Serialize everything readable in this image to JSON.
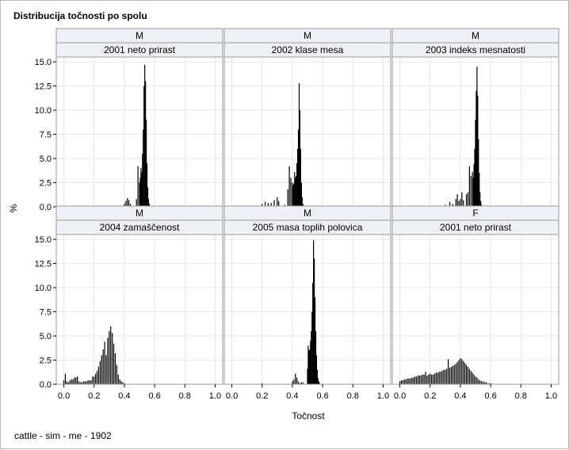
{
  "title": "Distribucija točnosti po spolu",
  "footnote": "cattle - sim - me - 1902",
  "colors": {
    "bars": "#000000",
    "grid": "#e6e6e6",
    "strip": "#eef0f6",
    "frame": "#9a9a9a"
  },
  "chart_data": {
    "type": "bar",
    "title": "Distribucija točnosti po spolu",
    "xlabel": "Točnost",
    "ylabel": "%",
    "xlim": [
      -0.05,
      1.05
    ],
    "ylim": [
      0,
      15.5
    ],
    "xticks": [
      0.0,
      0.2,
      0.4,
      0.6,
      0.8,
      1.0
    ],
    "yticks": [
      0.0,
      2.5,
      5.0,
      7.5,
      10.0,
      12.5,
      15.0
    ],
    "xtick_labels": [
      "0.0",
      "0.2",
      "0.4",
      "0.6",
      "0.8",
      "1.0"
    ],
    "ytick_labels": [
      "0.0",
      "2.5",
      "5.0",
      "7.5",
      "10.0",
      "12.5",
      "15.0"
    ],
    "grid": true,
    "panels": [
      {
        "sex": "M",
        "trait": "2001 neto prirast",
        "x": [
          0.1,
          0.2,
          0.4,
          0.41,
          0.42,
          0.43,
          0.44,
          0.48,
          0.49,
          0.5,
          0.505,
          0.51,
          0.515,
          0.52,
          0.525,
          0.53,
          0.535,
          0.54,
          0.545,
          0.55,
          0.555,
          0.56,
          0.565,
          0.57
        ],
        "y": [
          0.1,
          0.1,
          0.3,
          0.6,
          0.9,
          0.7,
          0.3,
          0.8,
          4.2,
          2.5,
          3.0,
          4.0,
          3.6,
          5.5,
          8.0,
          12.5,
          14.7,
          13.0,
          9.0,
          4.5,
          2.0,
          0.8,
          0.3,
          0.1
        ]
      },
      {
        "sex": "M",
        "trait": "2002 klase mesa",
        "x": [
          0.0,
          0.02,
          0.04,
          0.06,
          0.08,
          0.1,
          0.12,
          0.2,
          0.22,
          0.24,
          0.26,
          0.28,
          0.3,
          0.31,
          0.33,
          0.35,
          0.37,
          0.38,
          0.39,
          0.4,
          0.405,
          0.41,
          0.415,
          0.42,
          0.425,
          0.43,
          0.435,
          0.44,
          0.445,
          0.45,
          0.455,
          0.46,
          0.465,
          0.47
        ],
        "y": [
          0.1,
          0.1,
          0.1,
          0.1,
          0.1,
          0.1,
          0.1,
          0.3,
          0.5,
          0.4,
          0.4,
          0.7,
          1.0,
          0.6,
          0.1,
          0.2,
          1.8,
          4.2,
          3.0,
          2.5,
          2.2,
          2.4,
          3.6,
          3.0,
          3.2,
          4.5,
          6.0,
          8.0,
          12.8,
          10.0,
          6.0,
          2.5,
          1.0,
          0.3
        ]
      },
      {
        "sex": "M",
        "trait": "2003 indeks mesnatosti",
        "x": [
          0.1,
          0.2,
          0.3,
          0.33,
          0.35,
          0.37,
          0.38,
          0.39,
          0.4,
          0.41,
          0.42,
          0.44,
          0.45,
          0.46,
          0.47,
          0.48,
          0.485,
          0.49,
          0.495,
          0.5,
          0.505,
          0.51,
          0.515,
          0.52,
          0.525,
          0.53,
          0.535,
          0.54
        ],
        "y": [
          0.1,
          0.1,
          0.2,
          0.5,
          0.3,
          0.8,
          1.3,
          0.6,
          0.8,
          1.5,
          0.7,
          1.3,
          1.5,
          4.2,
          3.2,
          3.6,
          3.0,
          4.4,
          6.0,
          9.0,
          12.0,
          14.5,
          11.5,
          7.0,
          3.5,
          1.5,
          0.6,
          0.2
        ]
      },
      {
        "sex": "M",
        "trait": "2004 zamaščenost",
        "x": [
          0.0,
          0.01,
          0.02,
          0.03,
          0.04,
          0.05,
          0.06,
          0.07,
          0.08,
          0.09,
          0.1,
          0.11,
          0.12,
          0.13,
          0.14,
          0.15,
          0.16,
          0.17,
          0.18,
          0.19,
          0.2,
          0.21,
          0.22,
          0.23,
          0.24,
          0.25,
          0.26,
          0.27,
          0.28,
          0.29,
          0.3,
          0.31,
          0.32,
          0.33,
          0.34,
          0.35,
          0.36,
          0.37,
          0.38,
          0.39,
          0.4
        ],
        "y": [
          0.4,
          1.1,
          0.3,
          0.2,
          0.4,
          0.5,
          0.5,
          0.7,
          0.7,
          0.8,
          0.3,
          0.2,
          0.2,
          0.3,
          0.3,
          0.3,
          0.4,
          0.4,
          0.4,
          0.8,
          0.8,
          1.1,
          1.4,
          1.8,
          2.4,
          3.0,
          3.6,
          4.4,
          3.0,
          4.8,
          5.5,
          6.0,
          5.3,
          4.2,
          3.2,
          2.0,
          1.0,
          0.5,
          0.3,
          0.2,
          0.1
        ]
      },
      {
        "sex": "M",
        "trait": "2005 masa toplih polovica",
        "x": [
          0.2,
          0.4,
          0.41,
          0.42,
          0.43,
          0.44,
          0.45,
          0.46,
          0.47,
          0.5,
          0.505,
          0.51,
          0.515,
          0.52,
          0.525,
          0.53,
          0.535,
          0.54,
          0.545,
          0.55,
          0.555,
          0.56,
          0.565,
          0.57,
          0.575,
          0.58
        ],
        "y": [
          0.1,
          0.3,
          0.5,
          1.1,
          0.7,
          0.3,
          0.1,
          0.2,
          0.2,
          1.6,
          4.0,
          3.5,
          3.6,
          4.5,
          5.5,
          7.5,
          10.5,
          14.9,
          13.0,
          9.0,
          5.5,
          3.0,
          1.5,
          0.6,
          0.3,
          0.1
        ]
      },
      {
        "sex": "F",
        "trait": "2001 neto prirast",
        "x": [
          0.0,
          0.01,
          0.02,
          0.03,
          0.04,
          0.05,
          0.06,
          0.07,
          0.08,
          0.09,
          0.1,
          0.11,
          0.12,
          0.13,
          0.14,
          0.15,
          0.16,
          0.17,
          0.18,
          0.19,
          0.2,
          0.21,
          0.22,
          0.23,
          0.24,
          0.25,
          0.26,
          0.27,
          0.28,
          0.29,
          0.3,
          0.31,
          0.32,
          0.33,
          0.34,
          0.35,
          0.36,
          0.37,
          0.38,
          0.39,
          0.4,
          0.41,
          0.42,
          0.43,
          0.44,
          0.45,
          0.46,
          0.47,
          0.48,
          0.49,
          0.5,
          0.51,
          0.52,
          0.53,
          0.54,
          0.55,
          0.56,
          0.57,
          0.58,
          0.59,
          0.6,
          0.61,
          0.62
        ],
        "y": [
          0.3,
          0.4,
          0.4,
          0.5,
          0.5,
          0.6,
          0.6,
          0.6,
          0.7,
          0.7,
          0.8,
          0.8,
          0.9,
          0.9,
          0.9,
          1.0,
          1.0,
          1.3,
          0.9,
          1.0,
          1.1,
          1.0,
          1.0,
          1.1,
          1.2,
          1.2,
          1.3,
          1.3,
          1.4,
          1.5,
          1.5,
          1.6,
          2.6,
          1.7,
          1.8,
          1.9,
          2.0,
          2.1,
          2.3,
          2.5,
          2.7,
          2.6,
          2.4,
          2.2,
          2.0,
          1.8,
          1.6,
          1.4,
          1.2,
          1.0,
          0.8,
          0.7,
          0.5,
          0.4,
          0.3,
          0.3,
          0.2,
          0.2,
          0.1,
          0.1,
          0.1,
          0.05,
          0.05
        ]
      }
    ]
  }
}
